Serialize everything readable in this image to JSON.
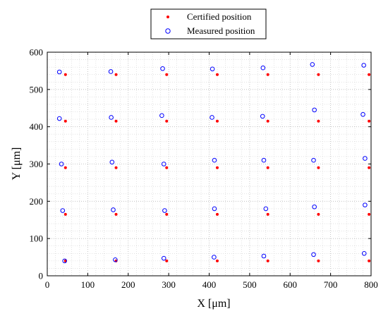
{
  "chart_data": {
    "type": "scatter",
    "title": "",
    "xlabel": "X [μm]",
    "ylabel": "Y [μm]",
    "xlim": [
      0,
      800
    ],
    "ylim": [
      0,
      600
    ],
    "xticks": [
      0,
      100,
      200,
      300,
      400,
      500,
      600,
      700,
      800
    ],
    "yticks": [
      0,
      100,
      200,
      300,
      400,
      500,
      600
    ],
    "grid": "major and minor, dotted",
    "legend_placement": "top-center, outside plot",
    "series": [
      {
        "name": "Certified position",
        "marker": "dot",
        "color": "#ff0000",
        "points": [
          [
            45,
            540
          ],
          [
            170,
            540
          ],
          [
            295,
            540
          ],
          [
            420,
            540
          ],
          [
            545,
            540
          ],
          [
            670,
            540
          ],
          [
            795,
            540
          ],
          [
            45,
            415
          ],
          [
            170,
            415
          ],
          [
            295,
            415
          ],
          [
            420,
            415
          ],
          [
            545,
            415
          ],
          [
            670,
            415
          ],
          [
            795,
            415
          ],
          [
            45,
            290
          ],
          [
            170,
            290
          ],
          [
            295,
            290
          ],
          [
            420,
            290
          ],
          [
            545,
            290
          ],
          [
            670,
            290
          ],
          [
            795,
            290
          ],
          [
            45,
            165
          ],
          [
            170,
            165
          ],
          [
            295,
            165
          ],
          [
            420,
            165
          ],
          [
            545,
            165
          ],
          [
            670,
            165
          ],
          [
            795,
            165
          ],
          [
            45,
            40
          ],
          [
            170,
            40
          ],
          [
            295,
            40
          ],
          [
            420,
            40
          ],
          [
            545,
            40
          ],
          [
            670,
            40
          ],
          [
            795,
            40
          ]
        ]
      },
      {
        "name": "Measured position",
        "marker": "circle",
        "color": "#0000ff",
        "points": [
          [
            30,
            547
          ],
          [
            157,
            548
          ],
          [
            285,
            556
          ],
          [
            408,
            555
          ],
          [
            533,
            558
          ],
          [
            655,
            567
          ],
          [
            782,
            565
          ],
          [
            30,
            422
          ],
          [
            158,
            425
          ],
          [
            283,
            430
          ],
          [
            407,
            425
          ],
          [
            532,
            428
          ],
          [
            660,
            445
          ],
          [
            780,
            433
          ],
          [
            35,
            300
          ],
          [
            160,
            305
          ],
          [
            288,
            300
          ],
          [
            413,
            310
          ],
          [
            535,
            310
          ],
          [
            658,
            310
          ],
          [
            785,
            315
          ],
          [
            38,
            175
          ],
          [
            163,
            177
          ],
          [
            290,
            175
          ],
          [
            413,
            180
          ],
          [
            540,
            180
          ],
          [
            660,
            185
          ],
          [
            785,
            190
          ],
          [
            43,
            40
          ],
          [
            168,
            43
          ],
          [
            288,
            47
          ],
          [
            412,
            50
          ],
          [
            535,
            53
          ],
          [
            658,
            57
          ],
          [
            783,
            60
          ]
        ]
      }
    ]
  }
}
